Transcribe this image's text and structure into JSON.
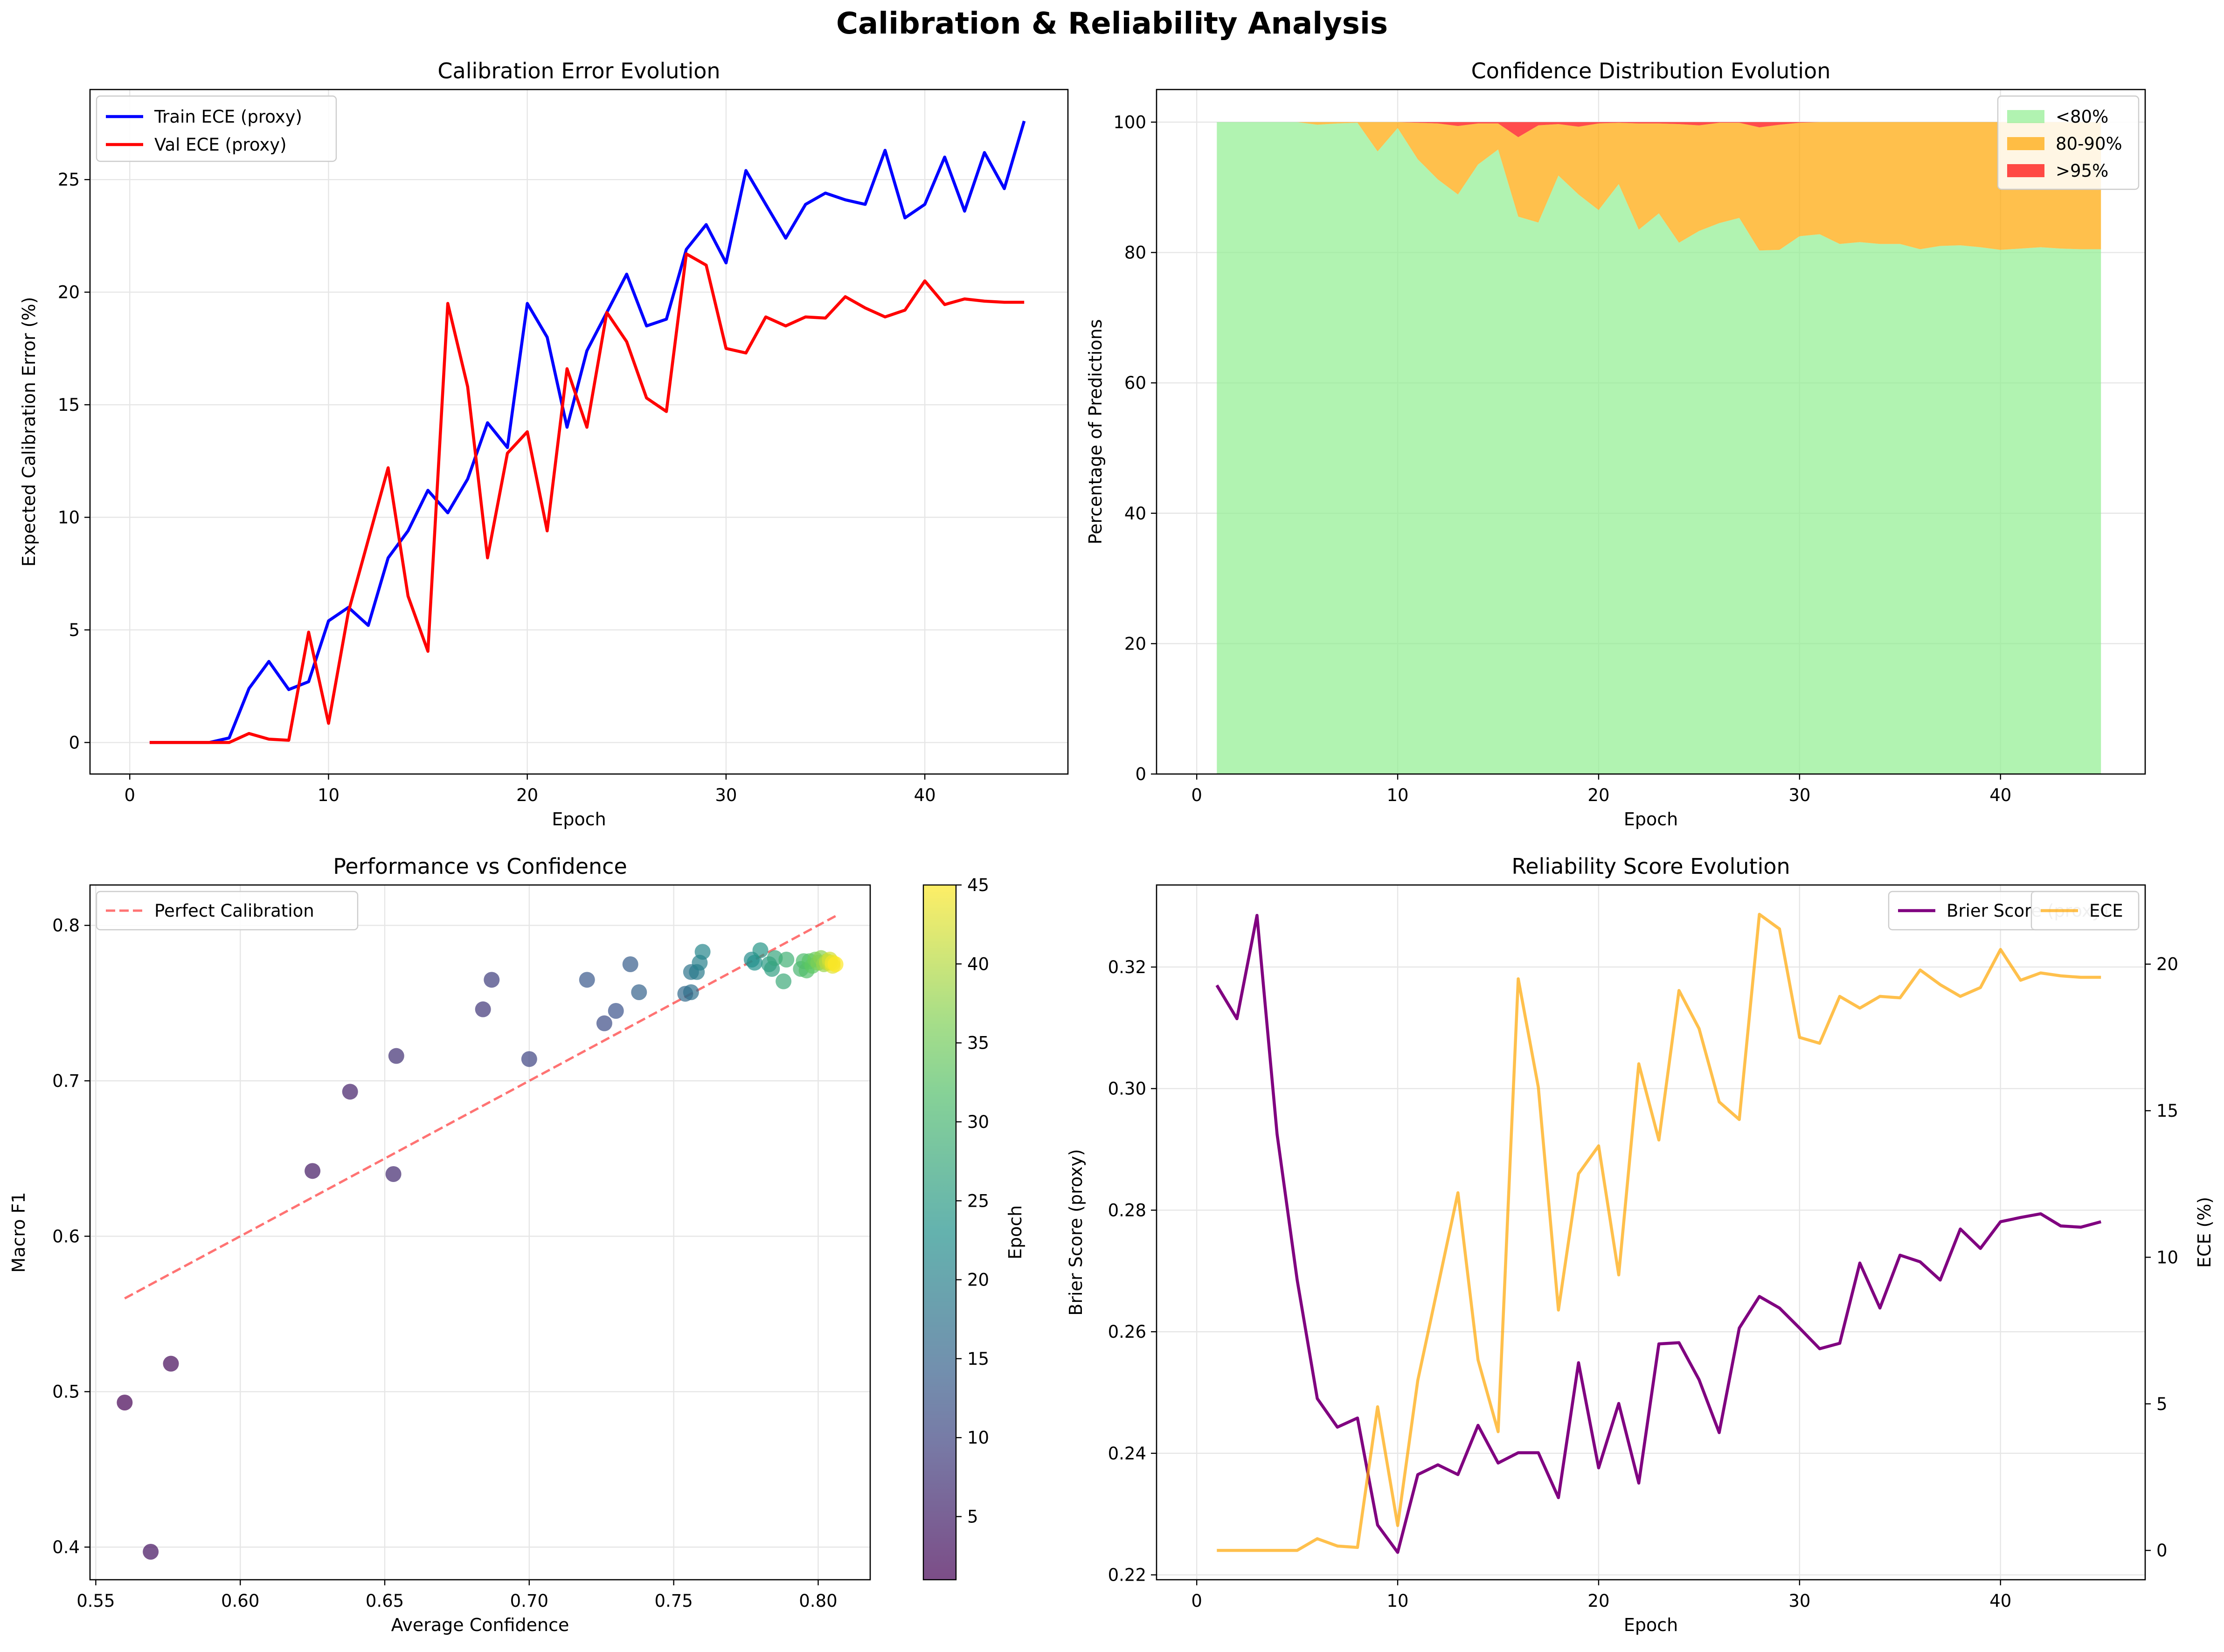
{
  "figure": {
    "title": "Calibration & Reliability Analysis"
  },
  "chart_data": [
    {
      "type": "line",
      "title": "Calibration Error Evolution",
      "xlabel": "Epoch",
      "ylabel": "Expected Calibration Error (%)",
      "xlim": [
        -2,
        47.2
      ],
      "ylim": [
        -1.4,
        29.0
      ],
      "xticks": [
        0,
        10,
        20,
        30,
        40
      ],
      "yticks": [
        0,
        5,
        10,
        15,
        20,
        25
      ],
      "grid": true,
      "legend_position": "upper left",
      "x": [
        1,
        2,
        3,
        4,
        5,
        6,
        7,
        8,
        9,
        10,
        11,
        12,
        13,
        14,
        15,
        16,
        17,
        18,
        19,
        20,
        21,
        22,
        23,
        24,
        25,
        26,
        27,
        28,
        29,
        30,
        31,
        32,
        33,
        34,
        35,
        36,
        37,
        38,
        39,
        40,
        41,
        42,
        43,
        44,
        45
      ],
      "series": [
        {
          "name": "Train ECE (proxy)",
          "color": "#0000ff",
          "values": [
            0,
            0,
            0,
            0,
            0.2,
            2.4,
            3.6,
            2.35,
            2.7,
            5.4,
            6.0,
            5.2,
            8.2,
            9.4,
            11.2,
            10.2,
            11.7,
            14.2,
            13.1,
            19.5,
            18.0,
            14.0,
            17.4,
            19.1,
            20.8,
            18.5,
            18.8,
            21.9,
            23.0,
            21.3,
            25.4,
            23.9,
            22.4,
            23.9,
            24.4,
            24.1,
            23.9,
            26.3,
            23.3,
            23.9,
            26.0,
            23.6,
            26.2,
            24.6,
            27.6
          ]
        },
        {
          "name": "Val ECE (proxy)",
          "color": "#ff0000",
          "values": [
            0,
            0,
            0,
            0,
            0,
            0.4,
            0.15,
            0.1,
            4.9,
            0.85,
            5.8,
            9.0,
            12.2,
            6.5,
            4.05,
            19.5,
            15.8,
            8.2,
            12.85,
            13.8,
            9.4,
            16.6,
            14.0,
            19.1,
            17.8,
            15.3,
            14.7,
            21.7,
            21.2,
            17.5,
            17.3,
            18.9,
            18.5,
            18.9,
            18.85,
            19.8,
            19.3,
            18.9,
            19.2,
            20.5,
            19.45,
            19.7,
            19.6,
            19.55,
            19.55
          ]
        }
      ]
    },
    {
      "type": "area",
      "stacked": true,
      "title": "Confidence Distribution Evolution",
      "xlabel": "Epoch",
      "ylabel": "Percentage of Predictions",
      "xlim": [
        -2,
        47.2
      ],
      "ylim": [
        0,
        105
      ],
      "xticks": [
        0,
        10,
        20,
        30,
        40
      ],
      "yticks": [
        0,
        20,
        40,
        60,
        80,
        100
      ],
      "grid": true,
      "legend_position": "upper right",
      "x": [
        1,
        2,
        3,
        4,
        5,
        6,
        7,
        8,
        9,
        10,
        11,
        12,
        13,
        14,
        15,
        16,
        17,
        18,
        19,
        20,
        21,
        22,
        23,
        24,
        25,
        26,
        27,
        28,
        29,
        30,
        31,
        32,
        33,
        34,
        35,
        36,
        37,
        38,
        39,
        40,
        41,
        42,
        43,
        44,
        45
      ],
      "series": [
        {
          "name": "<80%",
          "color": "#90ee90",
          "values": [
            100,
            100,
            100,
            100,
            100,
            99.6,
            99.8,
            99.9,
            95.5,
            99.1,
            94.3,
            91.2,
            88.9,
            93.5,
            95.8,
            85.5,
            84.6,
            91.8,
            88.9,
            86.5,
            90.5,
            83.5,
            86.0,
            81.5,
            83.3,
            84.5,
            85.3,
            80.3,
            80.4,
            82.5,
            82.8,
            81.3,
            81.6,
            81.3,
            81.3,
            80.5,
            81.0,
            81.1,
            80.8,
            80.4,
            80.6,
            80.8,
            80.6,
            80.5,
            80.5
          ]
        },
        {
          "name": "80-90%",
          "color": "#ffa500",
          "values": [
            0,
            0,
            0,
            0,
            0,
            0.4,
            0.2,
            0.1,
            4.5,
            0.9,
            5.6,
            8.6,
            10.5,
            6.3,
            4.0,
            12.2,
            14.9,
            7.9,
            10.4,
            13.3,
            9.4,
            16.3,
            13.8,
            18.2,
            16.2,
            15.4,
            14.6,
            18.9,
            19.2,
            17.4,
            17.2,
            18.7,
            18.4,
            18.7,
            18.7,
            19.5,
            19.0,
            18.9,
            19.2,
            19.6,
            19.4,
            19.2,
            19.4,
            19.5,
            19.5
          ]
        },
        {
          "name": ">95%",
          "color": "#ff0000",
          "values": [
            0,
            0,
            0,
            0,
            0,
            0,
            0,
            0,
            0,
            0,
            0.1,
            0.2,
            0.6,
            0.2,
            0.2,
            2.3,
            0.5,
            0.3,
            0.7,
            0.2,
            0.1,
            0.2,
            0.2,
            0.3,
            0.5,
            0.1,
            0.1,
            0.8,
            0.4,
            0.1,
            0,
            0,
            0,
            0,
            0,
            0,
            0,
            0,
            0,
            0,
            0,
            0,
            0,
            0,
            0
          ]
        }
      ]
    },
    {
      "type": "scatter",
      "title": "Performance vs Confidence",
      "xlabel": "Average Confidence",
      "ylabel": "Macro F1",
      "xlim": [
        0.548,
        0.818
      ],
      "ylim": [
        0.379,
        0.826
      ],
      "xticks": [
        0.55,
        0.6,
        0.65,
        0.7,
        0.75,
        0.8
      ],
      "yticks": [
        0.4,
        0.5,
        0.6,
        0.7,
        0.8
      ],
      "grid": true,
      "legend_position": "upper left",
      "reference_line": {
        "name": "Perfect Calibration",
        "color": "#ff0000",
        "x": [
          0.56,
          0.806
        ],
        "y": [
          0.56,
          0.806
        ]
      },
      "colorbar": {
        "label": "Epoch",
        "min": 1,
        "max": 45,
        "ticks": [
          5,
          10,
          15,
          20,
          25,
          30,
          35,
          40,
          45
        ],
        "colormap": "viridis"
      },
      "points": [
        {
          "x": 0.56,
          "y": 0.493,
          "epoch": 1
        },
        {
          "x": 0.576,
          "y": 0.518,
          "epoch": 2
        },
        {
          "x": 0.569,
          "y": 0.397,
          "epoch": 3
        },
        {
          "x": 0.625,
          "y": 0.642,
          "epoch": 4
        },
        {
          "x": 0.638,
          "y": 0.693,
          "epoch": 5
        },
        {
          "x": 0.653,
          "y": 0.64,
          "epoch": 6
        },
        {
          "x": 0.654,
          "y": 0.716,
          "epoch": 7
        },
        {
          "x": 0.684,
          "y": 0.746,
          "epoch": 8
        },
        {
          "x": 0.687,
          "y": 0.765,
          "epoch": 9
        },
        {
          "x": 0.7,
          "y": 0.714,
          "epoch": 10
        },
        {
          "x": 0.726,
          "y": 0.737,
          "epoch": 11
        },
        {
          "x": 0.73,
          "y": 0.745,
          "epoch": 12
        },
        {
          "x": 0.72,
          "y": 0.765,
          "epoch": 13
        },
        {
          "x": 0.735,
          "y": 0.775,
          "epoch": 14
        },
        {
          "x": 0.738,
          "y": 0.757,
          "epoch": 15
        },
        {
          "x": 0.754,
          "y": 0.756,
          "epoch": 16
        },
        {
          "x": 0.756,
          "y": 0.757,
          "epoch": 17
        },
        {
          "x": 0.756,
          "y": 0.77,
          "epoch": 18
        },
        {
          "x": 0.758,
          "y": 0.77,
          "epoch": 19
        },
        {
          "x": 0.759,
          "y": 0.776,
          "epoch": 20
        },
        {
          "x": 0.76,
          "y": 0.783,
          "epoch": 21
        },
        {
          "x": 0.777,
          "y": 0.778,
          "epoch": 22
        },
        {
          "x": 0.778,
          "y": 0.776,
          "epoch": 23
        },
        {
          "x": 0.78,
          "y": 0.784,
          "epoch": 24
        },
        {
          "x": 0.783,
          "y": 0.775,
          "epoch": 25
        },
        {
          "x": 0.784,
          "y": 0.772,
          "epoch": 26
        },
        {
          "x": 0.785,
          "y": 0.779,
          "epoch": 27
        },
        {
          "x": 0.788,
          "y": 0.764,
          "epoch": 28
        },
        {
          "x": 0.789,
          "y": 0.778,
          "epoch": 29
        },
        {
          "x": 0.794,
          "y": 0.772,
          "epoch": 30
        },
        {
          "x": 0.795,
          "y": 0.777,
          "epoch": 31
        },
        {
          "x": 0.796,
          "y": 0.771,
          "epoch": 32
        },
        {
          "x": 0.797,
          "y": 0.777,
          "epoch": 33
        },
        {
          "x": 0.798,
          "y": 0.774,
          "epoch": 34
        },
        {
          "x": 0.799,
          "y": 0.778,
          "epoch": 35
        },
        {
          "x": 0.8,
          "y": 0.776,
          "epoch": 36
        },
        {
          "x": 0.801,
          "y": 0.779,
          "epoch": 37
        },
        {
          "x": 0.802,
          "y": 0.775,
          "epoch": 38
        },
        {
          "x": 0.803,
          "y": 0.777,
          "epoch": 39
        },
        {
          "x": 0.803,
          "y": 0.776,
          "epoch": 40
        },
        {
          "x": 0.804,
          "y": 0.776,
          "epoch": 41
        },
        {
          "x": 0.804,
          "y": 0.778,
          "epoch": 42
        },
        {
          "x": 0.805,
          "y": 0.774,
          "epoch": 43
        },
        {
          "x": 0.805,
          "y": 0.776,
          "epoch": 44
        },
        {
          "x": 0.806,
          "y": 0.775,
          "epoch": 45
        }
      ]
    },
    {
      "type": "line",
      "dual_axis": true,
      "title": "Reliability Score Evolution",
      "xlabel": "Epoch",
      "ylabel": "Brier Score (proxy)",
      "y2label": "ECE (%)",
      "y2label_color": "#ffa500",
      "xlim": [
        -2,
        47.2
      ],
      "ylim": [
        0.2192,
        0.3335
      ],
      "y2lim": [
        -1.0,
        22.7
      ],
      "xticks": [
        0,
        10,
        20,
        30,
        40
      ],
      "yticks": [
        0.22,
        0.24,
        0.26,
        0.28,
        0.3,
        0.32
      ],
      "y2ticks": [
        0,
        5,
        10,
        15,
        20
      ],
      "grid": true,
      "legend_position": "upper right",
      "legend_labels": [
        "Brier Score (proxy)",
        "ECE"
      ],
      "x": [
        1,
        2,
        3,
        4,
        5,
        6,
        7,
        8,
        9,
        10,
        11,
        12,
        13,
        14,
        15,
        16,
        17,
        18,
        19,
        20,
        21,
        22,
        23,
        24,
        25,
        26,
        27,
        28,
        29,
        30,
        31,
        32,
        33,
        34,
        35,
        36,
        37,
        38,
        39,
        40,
        41,
        42,
        43,
        44,
        45
      ],
      "series": [
        {
          "name": "Brier Score (proxy)",
          "color": "#800080",
          "axis": "left",
          "values": [
            0.317,
            0.3115,
            0.3285,
            0.2925,
            0.2685,
            0.249,
            0.2443,
            0.2458,
            0.2282,
            0.2237,
            0.2365,
            0.2381,
            0.2365,
            0.2446,
            0.2384,
            0.2401,
            0.2401,
            0.2327,
            0.2549,
            0.2376,
            0.2482,
            0.2351,
            0.258,
            0.2582,
            0.2521,
            0.2434,
            0.2606,
            0.2658,
            0.2639,
            0.2606,
            0.2572,
            0.2581,
            0.2713,
            0.2639,
            0.2726,
            0.2715,
            0.2685,
            0.2769,
            0.2737,
            0.2781,
            0.2788,
            0.2794,
            0.2774,
            0.2772,
            0.2781
          ]
        },
        {
          "name": "ECE",
          "color": "#ffa500",
          "axis": "right",
          "values": [
            0,
            0,
            0,
            0,
            0,
            0.4,
            0.15,
            0.1,
            4.9,
            0.85,
            5.8,
            9.0,
            12.2,
            6.5,
            4.05,
            19.5,
            15.8,
            8.2,
            12.85,
            13.8,
            9.4,
            16.6,
            14.0,
            19.1,
            17.8,
            15.3,
            14.7,
            21.7,
            21.2,
            17.5,
            17.3,
            18.9,
            18.5,
            18.9,
            18.85,
            19.8,
            19.3,
            18.9,
            19.2,
            20.5,
            19.45,
            19.7,
            19.6,
            19.55,
            19.55
          ]
        }
      ]
    }
  ]
}
